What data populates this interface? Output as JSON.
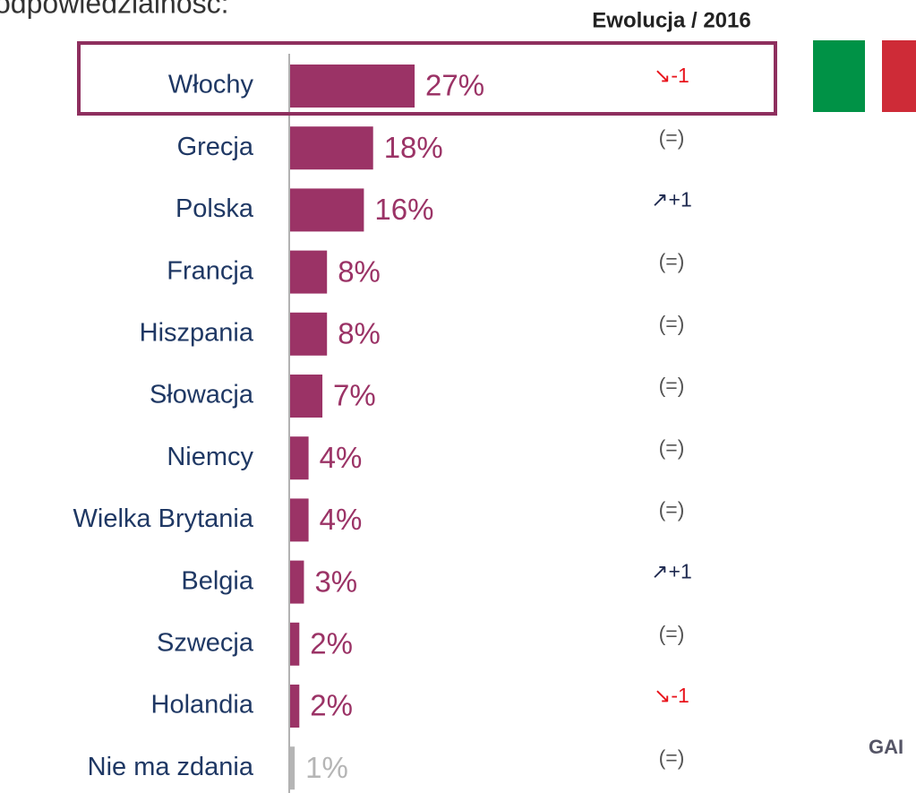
{
  "chart_data": {
    "type": "bar",
    "subtitle": "odpowiedzialność:",
    "evolution_header": "Ewolucja / 2016",
    "logo_text": "GAI",
    "categories": [
      "Włochy",
      "Grecja",
      "Polska",
      "Francja",
      "Hiszpania",
      "Słowacja",
      "Niemcy",
      "Wielka Brytania",
      "Belgia",
      "Szwecja",
      "Holandia",
      "Nie ma zdania"
    ],
    "values": [
      27,
      18,
      16,
      8,
      8,
      7,
      4,
      4,
      3,
      2,
      2,
      1
    ],
    "value_labels": [
      "27%",
      "18%",
      "16%",
      "8%",
      "8%",
      "7%",
      "4%",
      "4%",
      "3%",
      "2%",
      "2%",
      "1%"
    ],
    "colors": [
      "#9b3366",
      "#9b3366",
      "#9b3366",
      "#9b3366",
      "#9b3366",
      "#9b3366",
      "#9b3366",
      "#9b3366",
      "#9b3366",
      "#9b3366",
      "#9b3366",
      "#b5b5b5"
    ],
    "evolution": [
      "↘-1",
      "(=)",
      "↗+1",
      "(=)",
      "(=)",
      "(=)",
      "(=)",
      "(=)",
      "↗+1",
      "(=)",
      "↘-1",
      "(=)"
    ],
    "evolution_colors": [
      "#e8141c",
      "#555555",
      "#1f2a50",
      "#555555",
      "#555555",
      "#555555",
      "#555555",
      "#555555",
      "#1f2a50",
      "#555555",
      "#e8141c",
      "#555555"
    ]
  }
}
